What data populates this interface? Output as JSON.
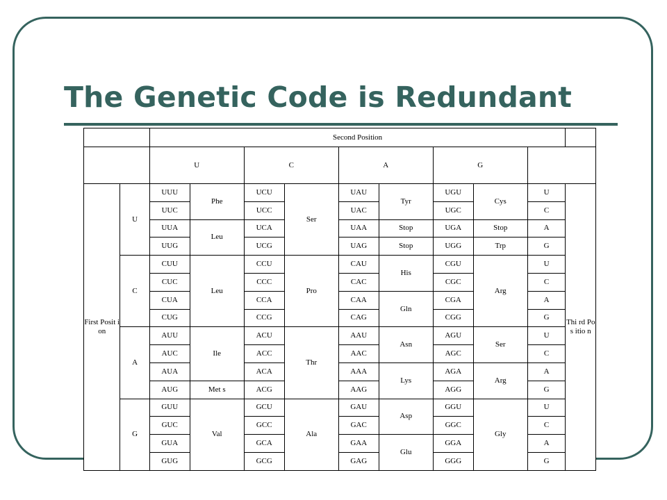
{
  "slide": {
    "title": "The Genetic Code is Redundant"
  },
  "table": {
    "second_position_label": "Second Position",
    "first_position_label": "First Posit ion",
    "third_position_label": "Thi rd Pos itio n",
    "second_bases": [
      "U",
      "C",
      "A",
      "G"
    ],
    "rows": [
      {
        "first": "U",
        "codons": [
          "UUU",
          "UCU",
          "UAU",
          "UGU"
        ],
        "third": "U"
      },
      {
        "first": "U",
        "codons": [
          "UUC",
          "UCC",
          "UAC",
          "UGC"
        ],
        "third": "C"
      },
      {
        "first": "U",
        "codons": [
          "UUA",
          "UCA",
          "UAA",
          "UGA"
        ],
        "third": "A"
      },
      {
        "first": "U",
        "codons": [
          "UUG",
          "UCG",
          "UAG",
          "UGG"
        ],
        "third": "G"
      },
      {
        "first": "C",
        "codons": [
          "CUU",
          "CCU",
          "CAU",
          "CGU"
        ],
        "third": "U"
      },
      {
        "first": "C",
        "codons": [
          "CUC",
          "CCC",
          "CAC",
          "CGC"
        ],
        "third": "C"
      },
      {
        "first": "C",
        "codons": [
          "CUA",
          "CCA",
          "CAA",
          "CGA"
        ],
        "third": "A"
      },
      {
        "first": "C",
        "codons": [
          "CUG",
          "CCG",
          "CAG",
          "CGG"
        ],
        "third": "G"
      },
      {
        "first": "A",
        "codons": [
          "AUU",
          "ACU",
          "AAU",
          "AGU"
        ],
        "third": "U"
      },
      {
        "first": "A",
        "codons": [
          "AUC",
          "ACC",
          "AAC",
          "AGC"
        ],
        "third": "C"
      },
      {
        "first": "A",
        "codons": [
          "AUA",
          "ACA",
          "AAA",
          "AGA"
        ],
        "third": "A"
      },
      {
        "first": "A",
        "codons": [
          "AUG",
          "ACG",
          "AAG",
          "AGG"
        ],
        "third": "G"
      },
      {
        "first": "G",
        "codons": [
          "GUU",
          "GCU",
          "GAU",
          "GGU"
        ],
        "third": "U"
      },
      {
        "first": "G",
        "codons": [
          "GUC",
          "GCC",
          "GAC",
          "GGC"
        ],
        "third": "C"
      },
      {
        "first": "G",
        "codons": [
          "GUA",
          "GCA",
          "GAA",
          "GGA"
        ],
        "third": "A"
      },
      {
        "first": "G",
        "codons": [
          "GUG",
          "GCG",
          "GAG",
          "GGG"
        ],
        "third": "G"
      }
    ],
    "amino_acids": {
      "U": [
        {
          "name": "Phe",
          "span": 2
        },
        {
          "name": "Leu",
          "span": 2
        },
        {
          "name": "Leu",
          "span": 4
        },
        {
          "name": "Ile",
          "span": 3
        },
        {
          "name": "Met s",
          "span": 1
        },
        {
          "name": "Val",
          "span": 4
        }
      ],
      "C": [
        {
          "name": "Ser",
          "span": 4
        },
        {
          "name": "Pro",
          "span": 4
        },
        {
          "name": "Thr",
          "span": 4
        },
        {
          "name": "Ala",
          "span": 4
        }
      ],
      "A": [
        {
          "name": "Tyr",
          "span": 2
        },
        {
          "name": "Stop",
          "span": 1
        },
        {
          "name": "Stop",
          "span": 1
        },
        {
          "name": "His",
          "span": 2
        },
        {
          "name": "Gln",
          "span": 2
        },
        {
          "name": "Asn",
          "span": 2
        },
        {
          "name": "Lys",
          "span": 2
        },
        {
          "name": "Asp",
          "span": 2
        },
        {
          "name": "Glu",
          "span": 2
        }
      ],
      "G": [
        {
          "name": "Cys",
          "span": 2
        },
        {
          "name": "Stop",
          "span": 1
        },
        {
          "name": "Trp",
          "span": 1
        },
        {
          "name": "Arg",
          "span": 4
        },
        {
          "name": "Ser",
          "span": 2
        },
        {
          "name": "Arg",
          "span": 2
        },
        {
          "name": "Gly",
          "span": 4
        }
      ]
    }
  }
}
